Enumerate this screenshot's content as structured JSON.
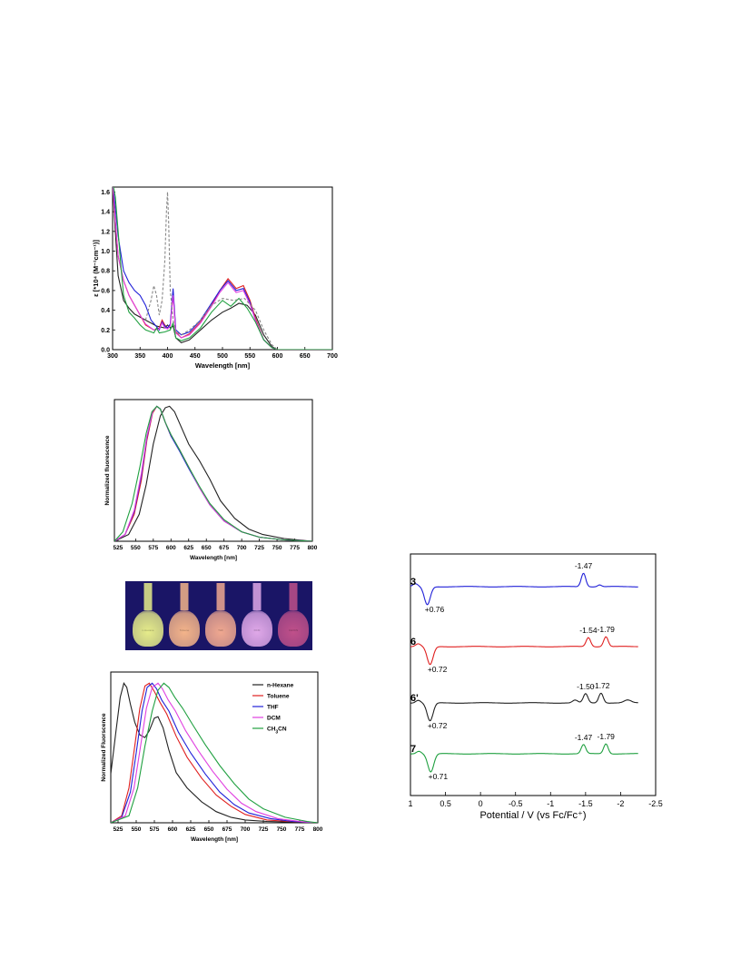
{
  "colors": {
    "hexane": "#222222",
    "toluene": "#e02020",
    "thf": "#2020d8",
    "dcm": "#e040e0",
    "ch3cn": "#20a040",
    "dashed": "#888888"
  },
  "chart_data": [
    {
      "id": "absorption",
      "type": "line",
      "xlabel": "Wavelength [nm]",
      "ylabel": "ε [*10⁴ (M⁻¹cm⁻¹)]",
      "xlim": [
        300,
        700
      ],
      "ylim": [
        0,
        1.65
      ],
      "xticks": [
        300,
        350,
        400,
        450,
        500,
        550,
        600,
        650,
        700
      ],
      "yticks": [
        0.0,
        0.2,
        0.4,
        0.6,
        0.8,
        1.0,
        1.2,
        1.4,
        1.6
      ],
      "series": [
        {
          "color": "black",
          "dashed": false,
          "x": [
            300,
            305,
            310,
            320,
            330,
            340,
            360,
            380,
            395,
            400,
            405,
            410,
            415,
            425,
            440,
            460,
            480,
            500,
            515,
            530,
            545,
            560,
            575,
            590,
            600,
            700
          ],
          "y": [
            1.7,
            1.2,
            0.75,
            0.5,
            0.42,
            0.36,
            0.3,
            0.24,
            0.22,
            0.25,
            0.22,
            0.24,
            0.12,
            0.07,
            0.1,
            0.2,
            0.3,
            0.38,
            0.42,
            0.47,
            0.45,
            0.35,
            0.15,
            0.03,
            0.0,
            0.0
          ]
        },
        {
          "color": "red",
          "dashed": false,
          "x": [
            300,
            305,
            310,
            320,
            330,
            340,
            350,
            360,
            375,
            385,
            390,
            395,
            400,
            405,
            410,
            415,
            425,
            440,
            460,
            480,
            495,
            510,
            525,
            538,
            550,
            560,
            575,
            590,
            600,
            700
          ],
          "y": [
            1.7,
            1.3,
            0.95,
            0.7,
            0.55,
            0.45,
            0.35,
            0.25,
            0.2,
            0.22,
            0.3,
            0.25,
            0.22,
            0.25,
            0.58,
            0.18,
            0.12,
            0.16,
            0.28,
            0.45,
            0.6,
            0.72,
            0.62,
            0.65,
            0.5,
            0.32,
            0.1,
            0.02,
            0.0,
            0.0
          ]
        },
        {
          "color": "blue",
          "dashed": false,
          "x": [
            300,
            305,
            310,
            320,
            330,
            340,
            350,
            360,
            370,
            385,
            390,
            395,
            400,
            405,
            410,
            415,
            425,
            440,
            460,
            480,
            495,
            510,
            525,
            538,
            550,
            560,
            575,
            590,
            600,
            700
          ],
          "y": [
            1.7,
            1.45,
            1.15,
            0.8,
            0.68,
            0.6,
            0.55,
            0.45,
            0.3,
            0.2,
            0.28,
            0.24,
            0.22,
            0.26,
            0.62,
            0.2,
            0.15,
            0.18,
            0.3,
            0.47,
            0.6,
            0.7,
            0.6,
            0.62,
            0.48,
            0.3,
            0.1,
            0.02,
            0.0,
            0.0
          ]
        },
        {
          "color": "magenta",
          "dashed": false,
          "x": [
            300,
            305,
            310,
            320,
            330,
            340,
            350,
            360,
            375,
            385,
            390,
            395,
            400,
            405,
            410,
            415,
            425,
            440,
            460,
            480,
            495,
            510,
            525,
            538,
            550,
            560,
            575,
            590,
            600,
            700
          ],
          "y": [
            1.7,
            1.3,
            0.95,
            0.7,
            0.55,
            0.45,
            0.35,
            0.26,
            0.2,
            0.21,
            0.27,
            0.22,
            0.21,
            0.24,
            0.55,
            0.17,
            0.12,
            0.15,
            0.27,
            0.44,
            0.58,
            0.68,
            0.58,
            0.6,
            0.46,
            0.3,
            0.1,
            0.02,
            0.0,
            0.0
          ]
        },
        {
          "color": "green",
          "dashed": false,
          "x": [
            300,
            305,
            310,
            315,
            320,
            330,
            340,
            350,
            360,
            375,
            380,
            385,
            395,
            405,
            410,
            415,
            425,
            440,
            460,
            480,
            500,
            515,
            530,
            545,
            560,
            575,
            590,
            600,
            700
          ],
          "y": [
            1.7,
            1.55,
            1.2,
            0.85,
            0.55,
            0.38,
            0.32,
            0.25,
            0.2,
            0.17,
            0.22,
            0.17,
            0.18,
            0.2,
            0.27,
            0.12,
            0.09,
            0.12,
            0.22,
            0.38,
            0.5,
            0.44,
            0.52,
            0.42,
            0.28,
            0.1,
            0.02,
            0.0,
            0.0
          ]
        },
        {
          "color": "dashed",
          "dashed": true,
          "x": [
            360,
            370,
            375,
            380,
            385,
            390,
            395,
            398,
            400,
            402,
            405,
            410,
            415,
            425,
            440,
            460,
            480,
            500,
            520,
            540,
            560,
            575,
            590,
            600
          ],
          "y": [
            0.3,
            0.5,
            0.65,
            0.55,
            0.35,
            0.5,
            0.9,
            1.4,
            1.6,
            1.3,
            0.6,
            0.3,
            0.18,
            0.15,
            0.2,
            0.3,
            0.45,
            0.52,
            0.5,
            0.52,
            0.4,
            0.2,
            0.05,
            0.0
          ]
        }
      ]
    },
    {
      "id": "fluorescence-top",
      "type": "line",
      "xlabel": "Wavelength [nm]",
      "ylabel": "Normalized fluorescence",
      "xlim": [
        520,
        800
      ],
      "ylim": [
        0,
        1.05
      ],
      "xticks": [
        525,
        550,
        575,
        600,
        625,
        650,
        675,
        700,
        725,
        750,
        775,
        800
      ],
      "series": [
        {
          "color": "black",
          "x": [
            520,
            540,
            555,
            565,
            575,
            585,
            592,
            598,
            605,
            615,
            625,
            640,
            655,
            670,
            690,
            710,
            730,
            760,
            800
          ],
          "y": [
            0.0,
            0.05,
            0.2,
            0.42,
            0.72,
            0.93,
            0.99,
            1.0,
            0.96,
            0.84,
            0.72,
            0.6,
            0.46,
            0.3,
            0.17,
            0.09,
            0.05,
            0.02,
            0.0
          ]
        },
        {
          "color": "red",
          "x": [
            520,
            535,
            548,
            558,
            566,
            574,
            580,
            585,
            592,
            600,
            612,
            625,
            640,
            655,
            675,
            700,
            725,
            760,
            800
          ],
          "y": [
            0.0,
            0.05,
            0.2,
            0.45,
            0.75,
            0.95,
            1.0,
            0.98,
            0.88,
            0.78,
            0.68,
            0.55,
            0.4,
            0.27,
            0.15,
            0.07,
            0.03,
            0.01,
            0.0
          ]
        },
        {
          "color": "blue",
          "x": [
            520,
            535,
            548,
            558,
            566,
            574,
            580,
            585,
            592,
            600,
            612,
            625,
            640,
            655,
            675,
            700,
            725,
            760,
            800
          ],
          "y": [
            0.0,
            0.05,
            0.22,
            0.48,
            0.77,
            0.96,
            1.0,
            0.98,
            0.88,
            0.78,
            0.67,
            0.54,
            0.4,
            0.27,
            0.15,
            0.07,
            0.03,
            0.01,
            0.0
          ]
        },
        {
          "color": "magenta",
          "x": [
            520,
            535,
            548,
            558,
            566,
            574,
            580,
            585,
            592,
            600,
            612,
            625,
            640,
            655,
            675,
            700,
            725,
            760,
            800
          ],
          "y": [
            0.0,
            0.05,
            0.23,
            0.5,
            0.78,
            0.96,
            1.0,
            0.98,
            0.88,
            0.79,
            0.68,
            0.55,
            0.4,
            0.27,
            0.15,
            0.07,
            0.03,
            0.01,
            0.0
          ]
        },
        {
          "color": "green",
          "x": [
            520,
            532,
            545,
            556,
            565,
            573,
            580,
            585,
            592,
            600,
            612,
            625,
            640,
            655,
            675,
            700,
            725,
            760,
            800
          ],
          "y": [
            0.0,
            0.07,
            0.28,
            0.55,
            0.8,
            0.96,
            1.0,
            0.98,
            0.88,
            0.79,
            0.68,
            0.55,
            0.41,
            0.28,
            0.16,
            0.07,
            0.03,
            0.01,
            0.0
          ]
        }
      ]
    },
    {
      "id": "fluorescence-bottom",
      "type": "line",
      "xlabel": "Wavelength [nm]",
      "ylabel": "Normalized Fluorscence",
      "xlim": [
        515,
        800
      ],
      "ylim": [
        0,
        1.08
      ],
      "xticks": [
        525,
        550,
        575,
        600,
        625,
        650,
        675,
        700,
        725,
        750,
        775,
        800
      ],
      "legend": [
        "n-Hexane",
        "Toluene",
        "THF",
        "DCM",
        "CH3CN"
      ],
      "series": [
        {
          "name": "n-Hexane",
          "color": "black",
          "x": [
            515,
            522,
            528,
            533,
            537,
            542,
            548,
            555,
            562,
            568,
            575,
            580,
            587,
            595,
            605,
            620,
            640,
            660,
            680,
            700,
            730,
            800
          ],
          "y": [
            0.35,
            0.65,
            0.9,
            1.0,
            0.97,
            0.85,
            0.72,
            0.63,
            0.61,
            0.66,
            0.75,
            0.76,
            0.68,
            0.52,
            0.36,
            0.25,
            0.15,
            0.08,
            0.04,
            0.02,
            0.01,
            0.0
          ]
        },
        {
          "name": "Toluene",
          "color": "red",
          "x": [
            515,
            530,
            540,
            548,
            555,
            562,
            568,
            575,
            583,
            592,
            605,
            620,
            640,
            660,
            680,
            700,
            730,
            760,
            800
          ],
          "y": [
            0.0,
            0.05,
            0.25,
            0.55,
            0.82,
            0.98,
            1.0,
            0.94,
            0.86,
            0.78,
            0.62,
            0.47,
            0.32,
            0.2,
            0.12,
            0.06,
            0.02,
            0.01,
            0.0
          ]
        },
        {
          "name": "THF",
          "color": "blue",
          "x": [
            515,
            530,
            542,
            550,
            558,
            565,
            572,
            578,
            585,
            595,
            608,
            625,
            645,
            665,
            685,
            705,
            735,
            765,
            800
          ],
          "y": [
            0.0,
            0.04,
            0.22,
            0.5,
            0.8,
            0.97,
            1.0,
            0.96,
            0.88,
            0.8,
            0.65,
            0.5,
            0.35,
            0.22,
            0.13,
            0.07,
            0.03,
            0.01,
            0.0
          ]
        },
        {
          "name": "DCM",
          "color": "magenta",
          "x": [
            515,
            535,
            547,
            556,
            564,
            572,
            580,
            586,
            594,
            604,
            618,
            635,
            655,
            675,
            695,
            715,
            745,
            775,
            800
          ],
          "y": [
            0.0,
            0.05,
            0.25,
            0.55,
            0.82,
            0.97,
            1.0,
            0.96,
            0.88,
            0.8,
            0.66,
            0.52,
            0.37,
            0.24,
            0.14,
            0.08,
            0.03,
            0.01,
            0.0
          ]
        },
        {
          "name": "CH3CN",
          "color": "green",
          "x": [
            515,
            540,
            552,
            562,
            572,
            580,
            588,
            595,
            603,
            614,
            628,
            645,
            665,
            685,
            705,
            725,
            755,
            785,
            800
          ],
          "y": [
            0.0,
            0.05,
            0.25,
            0.55,
            0.8,
            0.95,
            1.0,
            0.97,
            0.9,
            0.82,
            0.7,
            0.56,
            0.41,
            0.28,
            0.17,
            0.1,
            0.04,
            0.01,
            0.0
          ]
        }
      ]
    },
    {
      "id": "voltammetry",
      "type": "line",
      "xlabel": "Potential / V (vs Fc/Fc⁺)",
      "xlim": [
        1,
        -2.5
      ],
      "xticks": [
        1,
        0.5,
        0,
        -0.5,
        -1,
        -1.5,
        -2,
        -2.5
      ],
      "xtick_labels": [
        "1",
        "0.5",
        "0",
        "-0.5",
        "-1",
        "-1.5",
        "-2",
        "-2.5"
      ],
      "traces": [
        {
          "compound": "3",
          "color": "blue",
          "ox": 0.76,
          "ox_label": "+0.76",
          "red": [
            -1.47
          ],
          "red_labels": [
            "-1.47"
          ]
        },
        {
          "compound": "6",
          "color": "red",
          "ox": 0.72,
          "ox_label": "+0.72",
          "red": [
            -1.54,
            -1.79
          ],
          "red_labels": [
            "-1.54",
            "-1.79"
          ]
        },
        {
          "compound": "6'",
          "color": "black",
          "ox": 0.72,
          "ox_label": "+0.72",
          "red": [
            -1.5,
            -1.72
          ],
          "red_labels": [
            "-1.50",
            "-1.72"
          ]
        },
        {
          "compound": "7",
          "color": "green",
          "ox": 0.71,
          "ox_label": "+0.71",
          "red": [
            -1.47,
            -1.79
          ],
          "red_labels": [
            "-1.47",
            "-1.79"
          ]
        }
      ]
    }
  ],
  "photo": {
    "flasks": [
      {
        "label": "n-Hexane",
        "color": "#e6ec8a"
      },
      {
        "label": "Toluene",
        "color": "#f4b48a"
      },
      {
        "label": "THF",
        "color": "#f0a890"
      },
      {
        "label": "DCM",
        "color": "#e0a8e8"
      },
      {
        "label": "CH3CN",
        "color": "#c0508a"
      }
    ]
  }
}
